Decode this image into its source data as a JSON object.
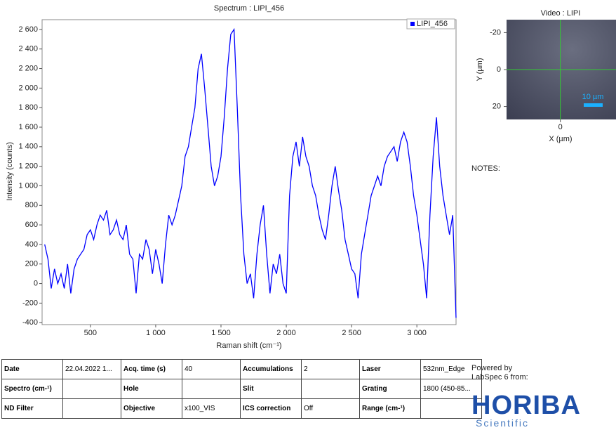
{
  "chart_data": {
    "type": "line",
    "title": "Spectrum : LIPI_456",
    "x_label": "Raman shift (cm⁻¹)",
    "y_label": "Intensity (counts)",
    "x": [
      150,
      175,
      200,
      225,
      250,
      275,
      300,
      325,
      350,
      375,
      400,
      425,
      450,
      475,
      500,
      525,
      550,
      575,
      600,
      625,
      650,
      675,
      700,
      725,
      750,
      775,
      800,
      825,
      850,
      875,
      900,
      925,
      950,
      975,
      1000,
      1025,
      1050,
      1075,
      1100,
      1125,
      1150,
      1175,
      1200,
      1225,
      1250,
      1275,
      1300,
      1325,
      1350,
      1375,
      1400,
      1425,
      1450,
      1475,
      1500,
      1525,
      1550,
      1575,
      1600,
      1625,
      1650,
      1675,
      1700,
      1725,
      1750,
      1775,
      1800,
      1825,
      1850,
      1875,
      1900,
      1925,
      1950,
      1975,
      2000,
      2025,
      2050,
      2075,
      2100,
      2125,
      2150,
      2175,
      2200,
      2225,
      2250,
      2275,
      2300,
      2325,
      2350,
      2375,
      2400,
      2425,
      2450,
      2475,
      2500,
      2525,
      2550,
      2575,
      2600,
      2625,
      2650,
      2675,
      2700,
      2725,
      2750,
      2775,
      2800,
      2825,
      2850,
      2875,
      2900,
      2925,
      2950,
      2975,
      3000,
      3025,
      3050,
      3075,
      3100,
      3125,
      3150,
      3175,
      3200,
      3225,
      3250,
      3275,
      3300
    ],
    "series": [
      {
        "name": "LIPI_456",
        "color": "#0000ff",
        "values": [
          400,
          250,
          -50,
          150,
          0,
          100,
          -50,
          200,
          -100,
          150,
          250,
          300,
          350,
          500,
          550,
          450,
          600,
          700,
          650,
          750,
          500,
          550,
          650,
          500,
          450,
          600,
          300,
          250,
          -100,
          300,
          250,
          450,
          350,
          100,
          350,
          200,
          0,
          400,
          700,
          600,
          700,
          850,
          1000,
          1300,
          1400,
          1600,
          1800,
          2200,
          2350,
          2000,
          1600,
          1200,
          1000,
          1100,
          1300,
          1700,
          2200,
          2550,
          2600,
          1800,
          900,
          300,
          0,
          100,
          -150,
          300,
          600,
          800,
          300,
          -100,
          200,
          100,
          300,
          0,
          -100,
          900,
          1300,
          1450,
          1200,
          1500,
          1300,
          1200,
          1000,
          900,
          700,
          550,
          450,
          700,
          1000,
          1200,
          950,
          750,
          450,
          300,
          150,
          100,
          -150,
          300,
          500,
          700,
          900,
          1000,
          1100,
          1000,
          1200,
          1300,
          1350,
          1400,
          1250,
          1450,
          1550,
          1450,
          1200,
          900,
          700,
          450,
          200,
          -150,
          700,
          1300,
          1700,
          1200,
          900,
          700,
          500,
          700,
          -350
        ]
      }
    ],
    "xlim": [
      130,
      3300
    ],
    "ylim": [
      -420,
      2700
    ],
    "xticks": [
      500,
      {
        "value": 1000,
        "label": "1 000"
      },
      {
        "value": 1500,
        "label": "1 500"
      },
      {
        "value": 2000,
        "label": "2 000"
      },
      {
        "value": 2500,
        "label": "2 500"
      },
      {
        "value": 3000,
        "label": "3 000"
      }
    ],
    "yticks": [
      -400,
      -200,
      0,
      200,
      400,
      600,
      800,
      {
        "value": 1000,
        "label": "1 000"
      },
      {
        "value": 1200,
        "label": "1 200"
      },
      {
        "value": 1400,
        "label": "1 400"
      },
      {
        "value": 1600,
        "label": "1 600"
      },
      {
        "value": 1800,
        "label": "1 800"
      },
      {
        "value": 2000,
        "label": "2 000"
      },
      {
        "value": 2200,
        "label": "2 200"
      },
      {
        "value": 2400,
        "label": "2 400"
      },
      {
        "value": 2600,
        "label": "2 600"
      }
    ],
    "legend": "top-right"
  },
  "video": {
    "title": "Video : LIPI",
    "x_label": "X (µm)",
    "y_label": "Y (µm)",
    "xlim": [
      -29,
      30
    ],
    "ylim": [
      -27,
      27
    ],
    "xticks": [
      0
    ],
    "yticks": [
      -20,
      0,
      20
    ],
    "scale_bar": "10 µm"
  },
  "notes": "NOTES:",
  "table": {
    "rows": [
      [
        "Date",
        "22.04.2022 1...",
        "Acq. time (s)",
        "40",
        "Accumulations",
        "2",
        "Laser",
        "532nm_Edge"
      ],
      [
        "Spectro (cm-¹)",
        null,
        "Hole",
        null,
        "Slit",
        null,
        "Grating",
        "1800 (450-85..."
      ],
      [
        "ND Filter",
        null,
        "Objective",
        "x100_VIS",
        "ICS correction",
        "Off",
        "Range (cm-¹)",
        null
      ]
    ]
  },
  "footer": {
    "powered": "Powered by",
    "product": "LabSpec 6 from:",
    "logo": "HORIBA",
    "logo_sub": "Scientific"
  }
}
